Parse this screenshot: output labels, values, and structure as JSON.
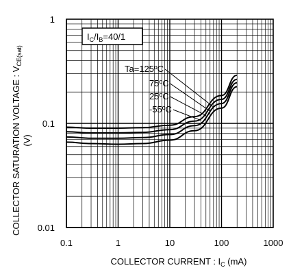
{
  "chart_data": {
    "type": "line",
    "xscale": "log",
    "yscale": "log",
    "xlim": [
      0.1,
      1000
    ],
    "ylim": [
      0.01,
      1
    ],
    "grid": true,
    "xlabel": "COLLECTOR CURRENT : I",
    "xlabel_sub": "C",
    "xlabel_unit": " (mA)",
    "ylabel": "COLLECTOR SATURATION VOLTAGE : V",
    "ylabel_sub": "CE(sat)",
    "ylabel_unit": "(V)",
    "x_tick_labels": [
      "0.1",
      "1",
      "10",
      "100",
      "1000"
    ],
    "x_ticks": [
      0.1,
      1,
      10,
      100,
      1000
    ],
    "y_tick_labels": [
      "0.01",
      "0.1",
      "1"
    ],
    "y_ticks": [
      0.01,
      0.1,
      1
    ],
    "condition": {
      "main1": "I",
      "sub1": "C",
      "main2": "/I",
      "sub2": "B",
      "tail": "=40/1"
    },
    "series": [
      {
        "name": "Ta=125ºC",
        "x": [
          0.1,
          0.3,
          1,
          3,
          10,
          30,
          100,
          200
        ],
        "y": [
          0.092,
          0.09,
          0.09,
          0.091,
          0.096,
          0.116,
          0.185,
          0.29
        ]
      },
      {
        "name": "75ºC",
        "x": [
          0.1,
          0.3,
          1,
          3,
          10,
          30,
          100,
          200
        ],
        "y": [
          0.083,
          0.081,
          0.081,
          0.082,
          0.087,
          0.105,
          0.17,
          0.265
        ]
      },
      {
        "name": "25ºC",
        "x": [
          0.1,
          0.3,
          1,
          3,
          10,
          30,
          100,
          200
        ],
        "y": [
          0.074,
          0.072,
          0.072,
          0.073,
          0.078,
          0.095,
          0.155,
          0.245
        ]
      },
      {
        "name": "-55ºC",
        "x": [
          0.1,
          0.3,
          1,
          3,
          10,
          30,
          100,
          200
        ],
        "y": [
          0.066,
          0.064,
          0.063,
          0.064,
          0.069,
          0.085,
          0.14,
          0.225
        ]
      }
    ]
  }
}
